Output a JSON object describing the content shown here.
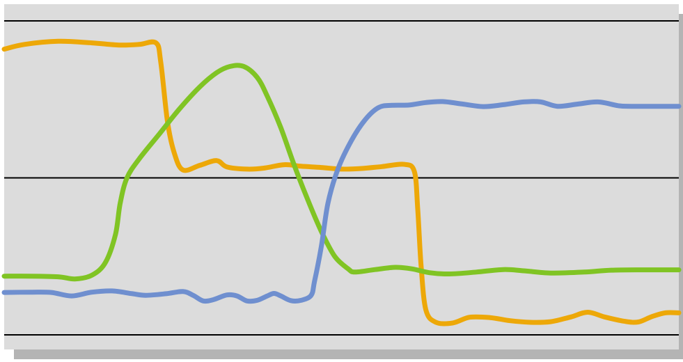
{
  "chart_data": {
    "type": "line",
    "title": "",
    "xlabel": "",
    "ylabel": "",
    "grid": true,
    "legend": "none",
    "xlim": [
      0,
      100
    ],
    "ylim": [
      0,
      100
    ],
    "colors": {
      "plot_background": "#dcdcdc",
      "shadow": "#b4b4b4",
      "gridline": "#000000",
      "blue": "#6f8fcf",
      "green": "#80c424",
      "orange": "#eda808"
    },
    "series": [
      {
        "color": "#eda808",
        "points": [
          [
            0,
            91
          ],
          [
            3,
            92.5
          ],
          [
            8,
            93.5
          ],
          [
            13,
            93
          ],
          [
            17,
            92.3
          ],
          [
            20,
            92.5
          ],
          [
            22.5,
            93
          ],
          [
            23.2,
            87
          ],
          [
            24.2,
            68
          ],
          [
            25.2,
            58
          ],
          [
            26.5,
            52.5
          ],
          [
            29,
            54
          ],
          [
            31.5,
            55.5
          ],
          [
            33,
            53.5
          ],
          [
            36,
            52.8
          ],
          [
            38.5,
            53.1
          ],
          [
            41.5,
            54.2
          ],
          [
            44,
            53.7
          ],
          [
            47,
            53.3
          ],
          [
            50,
            52.8
          ],
          [
            53,
            53
          ],
          [
            56,
            53.6
          ],
          [
            59.3,
            54.3
          ],
          [
            60.8,
            52
          ],
          [
            61.3,
            40
          ],
          [
            61.8,
            22
          ],
          [
            62.5,
            8
          ],
          [
            64,
            4
          ],
          [
            66.5,
            3.8
          ],
          [
            69,
            5.6
          ],
          [
            72,
            5.5
          ],
          [
            75,
            4.5
          ],
          [
            78,
            4
          ],
          [
            81,
            4.2
          ],
          [
            84,
            5.7
          ],
          [
            86.5,
            7.2
          ],
          [
            89,
            5.7
          ],
          [
            92,
            4.3
          ],
          [
            94,
            4.1
          ],
          [
            96,
            5.8
          ],
          [
            98,
            7
          ],
          [
            100,
            7
          ]
        ]
      },
      {
        "color": "#80c424",
        "points": [
          [
            0,
            18.7
          ],
          [
            4,
            18.7
          ],
          [
            8,
            18.5
          ],
          [
            10.5,
            17.8
          ],
          [
            13,
            19
          ],
          [
            15,
            23
          ],
          [
            16.5,
            32
          ],
          [
            17.2,
            42
          ],
          [
            18.2,
            50
          ],
          [
            20,
            56
          ],
          [
            23,
            64
          ],
          [
            26,
            72
          ],
          [
            29,
            79
          ],
          [
            31.5,
            83.5
          ],
          [
            33.5,
            85.5
          ],
          [
            35.5,
            85.5
          ],
          [
            37.5,
            82
          ],
          [
            39,
            76
          ],
          [
            41,
            66
          ],
          [
            43,
            54
          ],
          [
            45,
            43
          ],
          [
            47,
            33
          ],
          [
            49,
            25
          ],
          [
            51,
            21
          ],
          [
            52,
            20
          ],
          [
            55,
            20.8
          ],
          [
            58,
            21.5
          ],
          [
            60.5,
            21
          ],
          [
            63,
            19.8
          ],
          [
            66,
            19.4
          ],
          [
            70,
            20
          ],
          [
            74,
            20.8
          ],
          [
            77,
            20.4
          ],
          [
            81,
            19.7
          ],
          [
            86,
            20
          ],
          [
            90,
            20.6
          ],
          [
            95,
            20.7
          ],
          [
            100,
            20.7
          ]
        ]
      },
      {
        "color": "#6f8fcf",
        "points": [
          [
            0,
            13.5
          ],
          [
            4,
            13.6
          ],
          [
            7,
            13.5
          ],
          [
            10,
            12.4
          ],
          [
            13,
            13.6
          ],
          [
            16,
            14
          ],
          [
            19,
            13.1
          ],
          [
            21,
            12.6
          ],
          [
            24,
            13.1
          ],
          [
            26.5,
            13.8
          ],
          [
            28,
            12.6
          ],
          [
            29.5,
            10.8
          ],
          [
            31,
            11.2
          ],
          [
            33,
            12.7
          ],
          [
            34.5,
            12.4
          ],
          [
            36,
            10.8
          ],
          [
            37.5,
            11
          ],
          [
            39,
            12.4
          ],
          [
            40,
            13.2
          ],
          [
            41,
            12.4
          ],
          [
            42.5,
            10.9
          ],
          [
            44,
            11
          ],
          [
            45.5,
            12.6
          ],
          [
            46,
            17
          ],
          [
            47,
            28
          ],
          [
            48,
            42
          ],
          [
            49.5,
            53
          ],
          [
            51.5,
            62
          ],
          [
            53.5,
            68.5
          ],
          [
            55.5,
            72.4
          ],
          [
            57.5,
            73.1
          ],
          [
            60,
            73.2
          ],
          [
            62.5,
            74
          ],
          [
            65,
            74.3
          ],
          [
            68,
            73.5
          ],
          [
            71,
            72.7
          ],
          [
            74,
            73.3
          ],
          [
            77,
            74.2
          ],
          [
            79.5,
            74.2
          ],
          [
            82,
            72.8
          ],
          [
            85,
            73.5
          ],
          [
            88,
            74.2
          ],
          [
            91,
            73
          ],
          [
            93,
            72.8
          ],
          [
            100,
            72.8
          ]
        ]
      }
    ]
  }
}
